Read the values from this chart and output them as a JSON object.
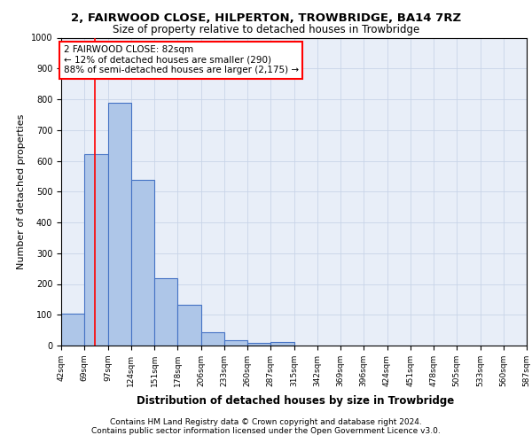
{
  "title1": "2, FAIRWOOD CLOSE, HILPERTON, TROWBRIDGE, BA14 7RZ",
  "title2": "Size of property relative to detached houses in Trowbridge",
  "xlabel": "Distribution of detached houses by size in Trowbridge",
  "ylabel": "Number of detached properties",
  "bar_values": [
    103,
    622,
    789,
    538,
    220,
    132,
    42,
    17,
    10,
    12,
    0,
    0,
    0,
    0,
    0,
    0,
    0,
    0,
    0,
    0
  ],
  "bar_labels": [
    "42sqm",
    "69sqm",
    "97sqm",
    "124sqm",
    "151sqm",
    "178sqm",
    "206sqm",
    "233sqm",
    "260sqm",
    "287sqm",
    "315sqm",
    "342sqm",
    "369sqm",
    "396sqm",
    "424sqm",
    "451sqm",
    "478sqm",
    "505sqm",
    "533sqm",
    "560sqm",
    "587sqm"
  ],
  "bar_color": "#aec6e8",
  "bar_edge_color": "#4472c4",
  "grid_color": "#c8d4e8",
  "background_color": "#e8eef8",
  "vline_color": "red",
  "annotation_text": "2 FAIRWOOD CLOSE: 82sqm\n← 12% of detached houses are smaller (290)\n88% of semi-detached houses are larger (2,175) →",
  "annotation_box_color": "white",
  "annotation_box_edge_color": "red",
  "footer1": "Contains HM Land Registry data © Crown copyright and database right 2024.",
  "footer2": "Contains public sector information licensed under the Open Government Licence v3.0.",
  "ylim": [
    0,
    1000
  ],
  "title1_fontsize": 9.5,
  "title2_fontsize": 8.5,
  "ylabel_fontsize": 8,
  "xlabel_fontsize": 8.5,
  "tick_fontsize": 6.5,
  "footer_fontsize": 6.5,
  "ann_fontsize": 7.5
}
